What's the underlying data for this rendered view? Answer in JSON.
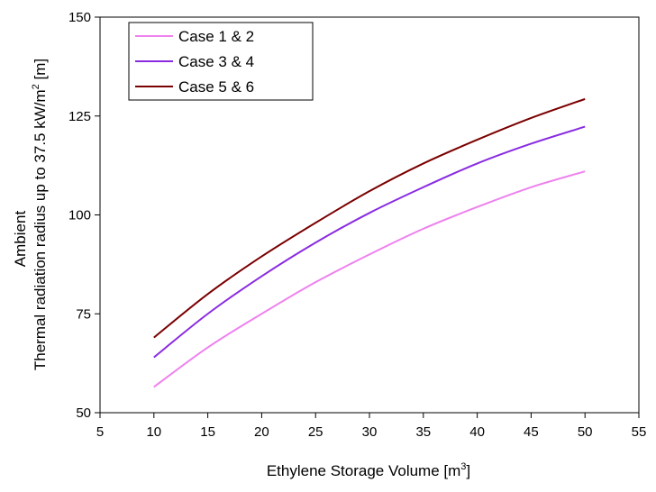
{
  "chart_data": {
    "type": "line",
    "title": "",
    "xlabel": "Ethylene Storage Volume [m",
    "xlabel_sup": "3",
    "xlabel_end": "]",
    "ylabel_line1": "Ambient",
    "ylabel_line2": "Thermal radiation radius up to 37.5 kW/m",
    "ylabel_sup": "2",
    "ylabel_end": " [m]",
    "xlim": [
      5,
      55
    ],
    "ylim": [
      50,
      150
    ],
    "xticks": [
      "5",
      "10",
      "15",
      "20",
      "25",
      "30",
      "35",
      "40",
      "45",
      "50",
      "55"
    ],
    "yticks": [
      "50",
      "75",
      "100",
      "125",
      "150"
    ],
    "grid": false,
    "legend_position": "top-left",
    "x": [
      10,
      15,
      20,
      25,
      30,
      35,
      40,
      45,
      50
    ],
    "series": [
      {
        "name": "Case 1 & 2",
        "color": "#ee82ee",
        "values": [
          56.5,
          66.5,
          75.0,
          83.0,
          90.0,
          96.5,
          102.0,
          107.0,
          111.0
        ]
      },
      {
        "name": "Case 3 & 4",
        "color": "#8a2be2",
        "values": [
          64.0,
          75.0,
          84.5,
          93.0,
          100.5,
          107.0,
          113.0,
          118.0,
          122.3
        ]
      },
      {
        "name": "Case 5 & 6",
        "color": "#7b0000",
        "values": [
          69.0,
          80.0,
          89.5,
          98.0,
          106.0,
          113.0,
          119.0,
          124.5,
          129.3
        ]
      }
    ]
  }
}
